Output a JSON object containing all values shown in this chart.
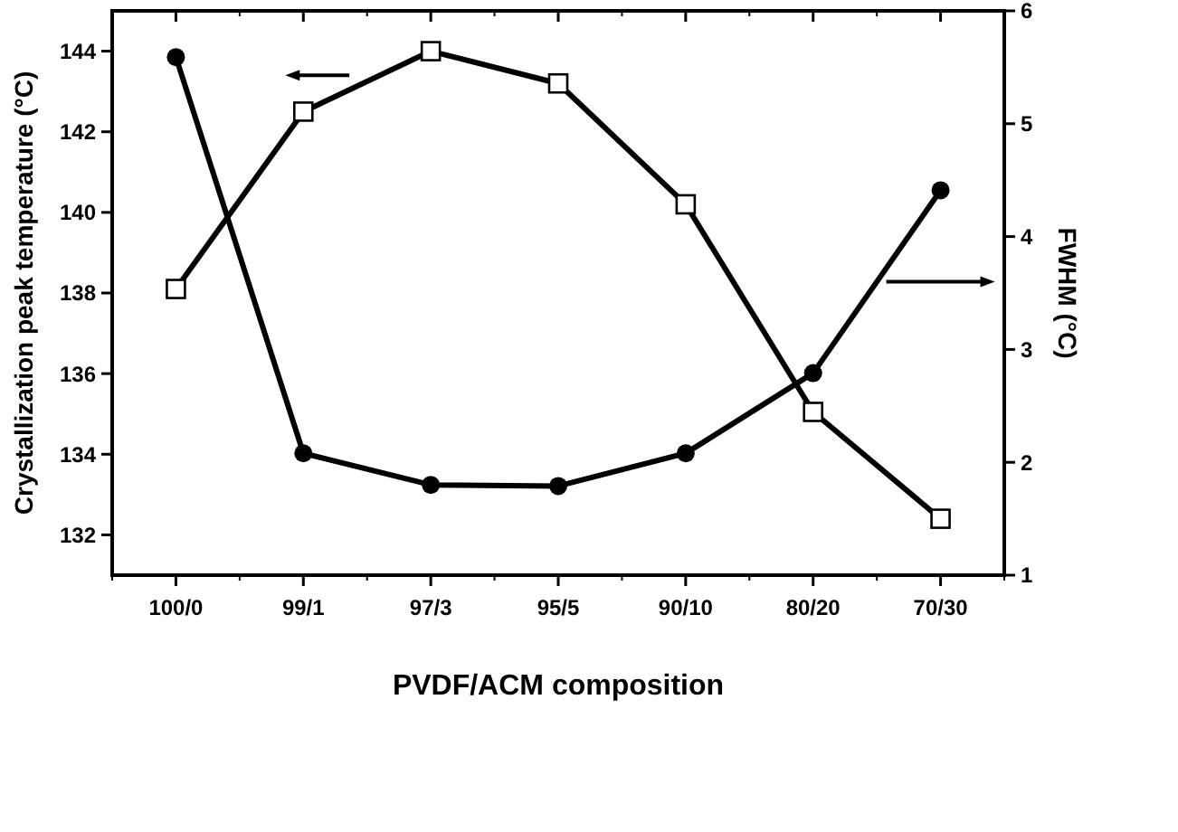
{
  "chart_data": {
    "type": "line",
    "xlabel": "PVDF/ACM composition",
    "ylabel": "Crystallization peak temperature (°C)",
    "y2label": "FWHM (°C)",
    "categories": [
      "100/0",
      "99/1",
      "97/3",
      "95/5",
      "90/10",
      "80/20",
      "70/30"
    ],
    "series": [
      {
        "color": "#000000",
        "marker": "square",
        "values": [
          138.1,
          142.5,
          144.0,
          143.2,
          140.2,
          135.05,
          132.4
        ]
      },
      {
        "color": "#000000",
        "marker": "circle",
        "axis": "y2",
        "values": [
          5.59,
          2.08,
          1.8,
          1.79,
          2.08,
          2.79,
          4.41
        ]
      }
    ],
    "ylim": [
      131,
      145
    ],
    "yticks": [
      132,
      134,
      136,
      138,
      140,
      142,
      144
    ],
    "y2lim": [
      1,
      6
    ],
    "y2ticks": [
      1,
      2,
      3,
      4,
      5,
      6
    ],
    "grid": false
  }
}
